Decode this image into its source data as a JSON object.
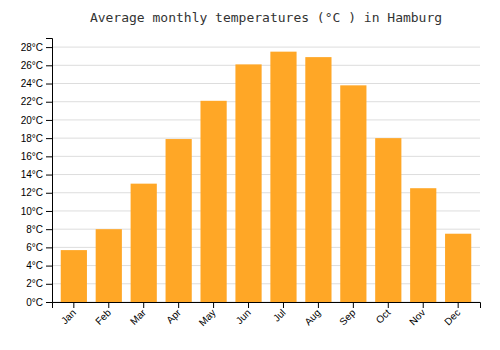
{
  "chart_data": {
    "type": "bar",
    "title": "Average monthly temperatures (°C ) in Hamburg",
    "categories": [
      "Jan",
      "Feb",
      "Mar",
      "Apr",
      "May",
      "Jun",
      "Jul",
      "Aug",
      "Sep",
      "Oct",
      "Nov",
      "Dec"
    ],
    "values": [
      5.7,
      8.0,
      13.0,
      17.9,
      22.1,
      26.1,
      27.5,
      26.9,
      23.8,
      18.0,
      12.5,
      7.5
    ],
    "color": "#FFA726",
    "ylim": [
      0,
      29
    ],
    "yticks": [
      {
        "value": 0,
        "label": "0°C"
      },
      {
        "value": 2,
        "label": "2°C"
      },
      {
        "value": 4,
        "label": "4°C"
      },
      {
        "value": 6,
        "label": "6°C"
      },
      {
        "value": 8,
        "label": "8°C"
      },
      {
        "value": 10,
        "label": "10°C"
      },
      {
        "value": 12,
        "label": "12°C"
      },
      {
        "value": 14,
        "label": "14°C"
      },
      {
        "value": 16,
        "label": "16°C"
      },
      {
        "value": 18,
        "label": "18°C"
      },
      {
        "value": 20,
        "label": "20°C"
      },
      {
        "value": 22,
        "label": "22°C"
      },
      {
        "value": 24,
        "label": "24°C"
      },
      {
        "value": 26,
        "label": "26°C"
      },
      {
        "value": 28,
        "label": "28°C"
      }
    ],
    "grid": true
  }
}
